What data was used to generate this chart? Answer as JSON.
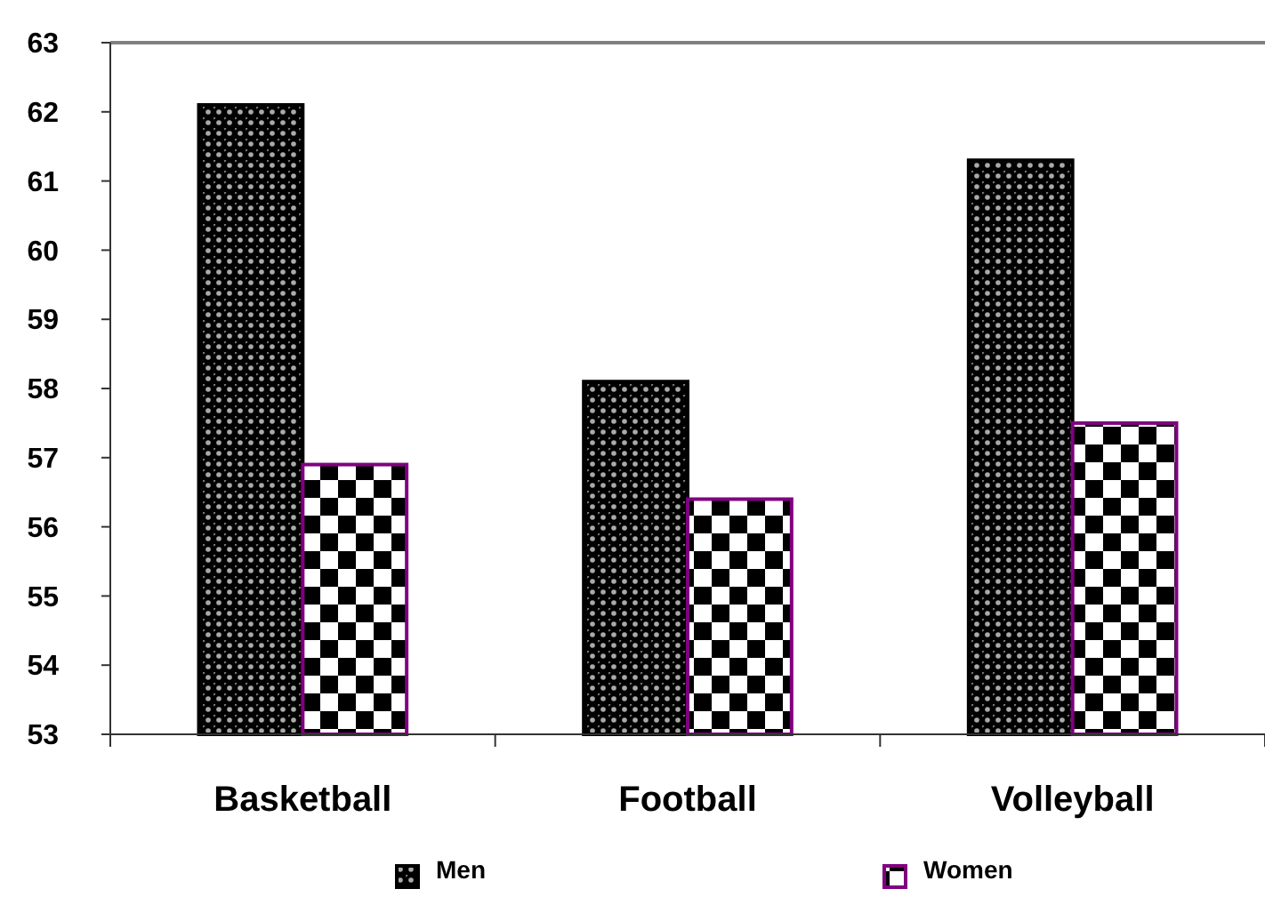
{
  "chart_data": {
    "type": "bar",
    "categories": [
      "Basketball",
      "Football",
      "Volleyball"
    ],
    "series": [
      {
        "name": "Men",
        "color": "#000000",
        "values": [
          62.1,
          58.1,
          61.3
        ]
      },
      {
        "name": "Women",
        "color": "#800080",
        "values": [
          56.9,
          56.4,
          57.5
        ]
      }
    ],
    "ylim": [
      53,
      63
    ],
    "yticks": [
      53,
      54,
      55,
      56,
      57,
      58,
      59,
      60,
      61,
      62,
      63
    ],
    "legend": "bottom"
  }
}
